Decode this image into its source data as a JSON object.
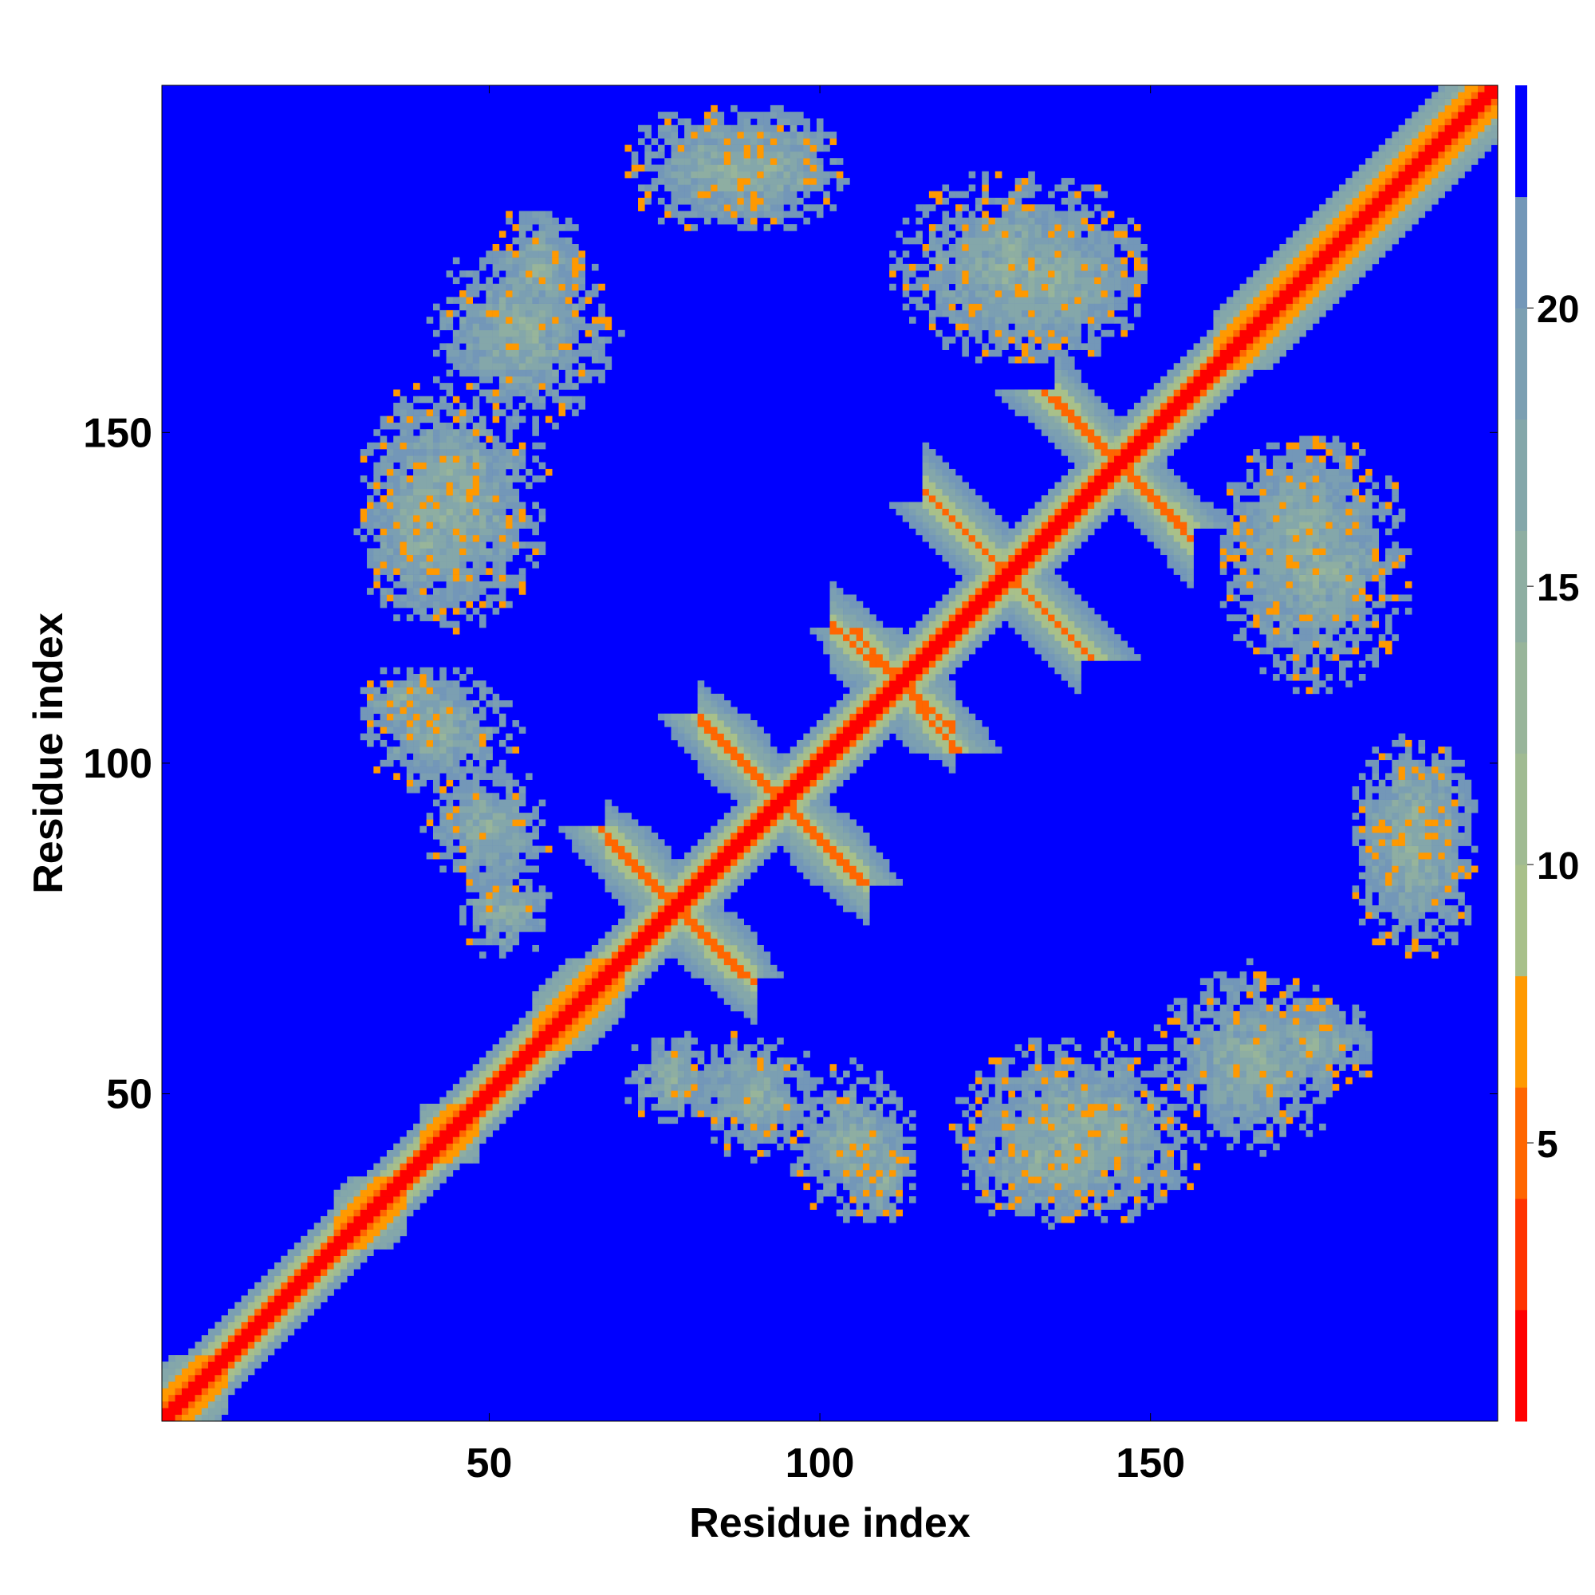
{
  "chart_data": {
    "type": "heatmap",
    "description_hidden": "",
    "xlabel": "Residue index",
    "ylabel": "Residue index",
    "n_residues": 202,
    "xlim": [
      1,
      202
    ],
    "ylim": [
      1,
      202
    ],
    "xticks": [
      50,
      100,
      150
    ],
    "yticks": [
      50,
      100,
      150
    ],
    "colorbar": {
      "ticks": [
        5,
        10,
        15,
        20
      ],
      "range": [
        0,
        24
      ],
      "bands": [
        {
          "from": 0,
          "to": 2,
          "color": "#ff0000"
        },
        {
          "from": 2,
          "to": 4,
          "color": "#ff3300"
        },
        {
          "from": 4,
          "to": 6,
          "color": "#ff6600"
        },
        {
          "from": 6,
          "to": 8,
          "color": "#ff9900"
        },
        {
          "from": 8,
          "to": 10,
          "color": "#a8c08a"
        },
        {
          "from": 10,
          "to": 12,
          "color": "#a0bb92"
        },
        {
          "from": 12,
          "to": 14,
          "color": "#98b59a"
        },
        {
          "from": 14,
          "to": 16,
          "color": "#8eaea2"
        },
        {
          "from": 16,
          "to": 18,
          "color": "#84a7aa"
        },
        {
          "from": 18,
          "to": 20,
          "color": "#7b9fb2"
        },
        {
          "from": 20,
          "to": 22,
          "color": "#7397b8"
        },
        {
          "from": 22,
          "to": 24,
          "color": "#0000ff"
        }
      ]
    },
    "contact_features": {
      "helices": [
        {
          "start": 1,
          "end": 10
        },
        {
          "start": 27,
          "end": 37
        },
        {
          "start": 40,
          "end": 48
        },
        {
          "start": 57,
          "end": 70
        },
        {
          "start": 160,
          "end": 202
        }
      ],
      "antiparallel": [
        {
          "a": [
            71,
            87
          ],
          "b": [
            85,
            70
          ]
        },
        {
          "a": [
            85,
            104
          ],
          "b": [
            103,
            85
          ]
        },
        {
          "a": [
            105,
            117
          ],
          "b": [
            118,
            108
          ]
        },
        {
          "a": [
            119,
            136
          ],
          "b": [
            138,
            121
          ]
        },
        {
          "a": [
            139,
            153
          ],
          "b": [
            152,
            137
          ]
        }
      ],
      "patches": [
        {
          "x": [
            30,
            50
          ],
          "y": [
            120,
            150
          ]
        },
        {
          "x": [
            40,
            60
          ],
          "y": [
            80,
            100
          ]
        },
        {
          "x": [
            50,
            65
          ],
          "y": [
            165,
            185
          ]
        },
        {
          "x": [
            70,
            85
          ],
          "y": [
            45,
            60
          ]
        },
        {
          "x": [
            95,
            115
          ],
          "y": [
            30,
            55
          ]
        },
        {
          "x": [
            120,
            160
          ],
          "y": [
            30,
            60
          ]
        },
        {
          "x": [
            150,
            180
          ],
          "y": [
            40,
            70
          ]
        },
        {
          "x": [
            180,
            200
          ],
          "y": [
            80,
            105
          ]
        },
        {
          "x": [
            120,
            150
          ],
          "y": [
            160,
            185
          ]
        },
        {
          "x": [
            70,
            100
          ],
          "y": [
            180,
            200
          ]
        },
        {
          "x": [
            30,
            45
          ],
          "y": [
            105,
            115
          ]
        },
        {
          "x": [
            160,
            190
          ],
          "y": [
            110,
            150
          ]
        }
      ]
    }
  }
}
